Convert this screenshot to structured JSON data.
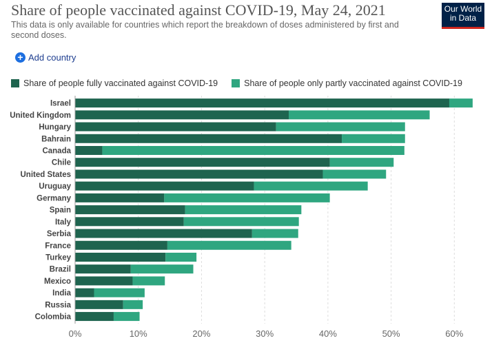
{
  "header": {
    "title": "Share of people vaccinated against COVID-19, May 24, 2021",
    "subtitle": "This data is only available for countries which report the breakdown of doses administered by first and second doses.",
    "logo_line1": "Our World",
    "logo_line2": "in Data"
  },
  "controls": {
    "add_country": "Add country"
  },
  "colors": {
    "fully": "#1e644f",
    "partly": "#2fa680",
    "grid": "#dddddd",
    "logo_bg": "#002147",
    "logo_accent": "#ce261e"
  },
  "chart_data": {
    "type": "bar",
    "orientation": "horizontal",
    "stacked": true,
    "categories": [
      "Israel",
      "United Kingdom",
      "Hungary",
      "Bahrain",
      "Canada",
      "Chile",
      "United States",
      "Uruguay",
      "Germany",
      "Spain",
      "Italy",
      "Serbia",
      "France",
      "Turkey",
      "Brazil",
      "Mexico",
      "India",
      "Russia",
      "Colombia"
    ],
    "series": [
      {
        "name": "Share of people fully vaccinated against COVID-19",
        "values": [
          59.2,
          33.8,
          31.8,
          42.2,
          4.3,
          40.3,
          39.2,
          28.3,
          14.1,
          17.4,
          17.2,
          28.0,
          14.6,
          14.3,
          8.8,
          9.1,
          3.0,
          7.6,
          6.1
        ]
      },
      {
        "name": "Share of people only partly vaccinated against COVID-19",
        "values": [
          3.7,
          22.3,
          20.4,
          10.0,
          47.8,
          10.1,
          10.0,
          18.0,
          26.2,
          18.4,
          18.2,
          7.3,
          19.6,
          4.9,
          9.9,
          5.1,
          8.0,
          3.1,
          4.1
        ]
      }
    ],
    "xlim": [
      0,
      64
    ],
    "xticks": [
      "0%",
      "10%",
      "20%",
      "30%",
      "40%",
      "50%",
      "60%"
    ],
    "grid": true,
    "legend_position": "top-left"
  }
}
